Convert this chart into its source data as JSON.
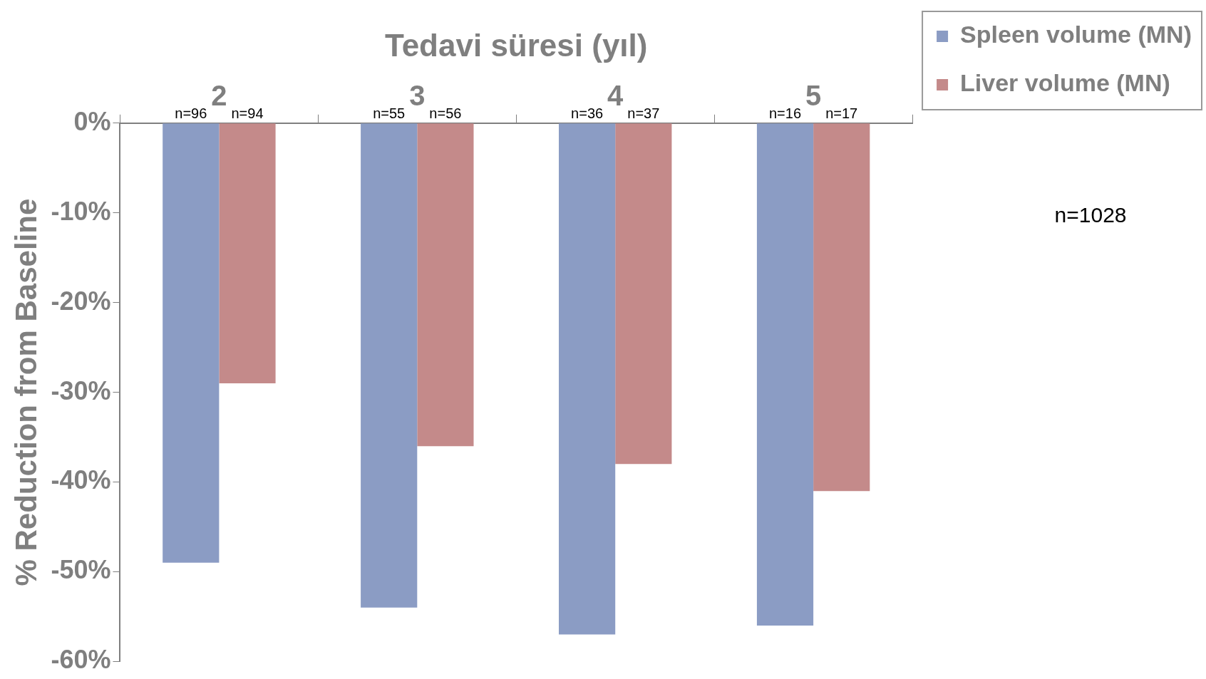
{
  "chart_data": {
    "type": "bar",
    "xlabel": "Tedavi süresi (yıl)",
    "ylabel": "% Reduction from Baseline",
    "categories": [
      "2",
      "3",
      "4",
      "5"
    ],
    "series": [
      {
        "name": "Spleen volume (MN)",
        "color": "#8b9cc4",
        "values": [
          -49,
          -54,
          -57,
          -56
        ]
      },
      {
        "name": "Liver volume (MN)",
        "color": "#c48a8a",
        "values": [
          -29,
          -36,
          -38,
          -41
        ]
      }
    ],
    "ylim": [
      -60,
      0
    ],
    "yticks": [
      {
        "value": 0,
        "label": "0%"
      },
      {
        "value": -10,
        "label": "-10%"
      },
      {
        "value": -20,
        "label": "-20%"
      },
      {
        "value": -30,
        "label": "-30%"
      },
      {
        "value": -40,
        "label": "-40%"
      },
      {
        "value": -50,
        "label": "-50%"
      },
      {
        "value": -60,
        "label": "-60%"
      }
    ],
    "annotations": [
      "n=1028",
      {
        "text": "n=96",
        "x": "2",
        "y": 0
      },
      {
        "text": "n=94",
        "x": "2",
        "y": 0
      },
      {
        "text": "n=55",
        "x": "3",
        "y": 0
      },
      {
        "text": "n=56",
        "x": "3",
        "y": 0
      },
      {
        "text": "n=36",
        "x": "4",
        "y": 0
      },
      {
        "text": "n=37",
        "x": "4",
        "y": 0
      },
      {
        "text": "n=16",
        "x": "5",
        "y": 0
      },
      {
        "text": "n=17",
        "x": "5",
        "y": 0
      }
    ],
    "legend": "top right",
    "grid": false
  }
}
